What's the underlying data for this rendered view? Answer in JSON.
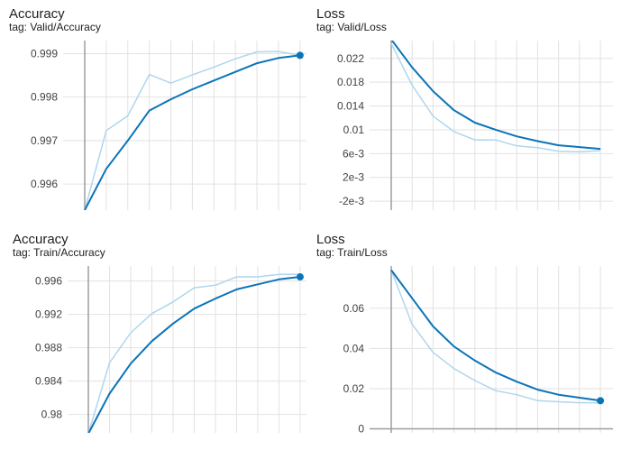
{
  "colors": {
    "smoothed": "#0b74b8",
    "raw": "#aed6ee",
    "grid": "#e2e2e2",
    "axis": "#9e9e9e",
    "text": "#212121"
  },
  "chart_data": [
    {
      "type": "line",
      "title": "Accuracy",
      "subtitle": "tag: Valid/Accuracy",
      "ylim": [
        0.9954,
        0.9993
      ],
      "yticks": [
        0.996,
        0.997,
        0.998,
        0.999
      ],
      "ytick_labels": [
        "0.996",
        "0.997",
        "0.998",
        "0.999"
      ],
      "xlim": [
        0,
        10.3
      ],
      "grid": true,
      "show_end_marker": true,
      "series": [
        {
          "x": [
            0,
            1,
            2,
            3,
            4,
            5,
            6,
            7,
            8,
            9,
            10
          ],
          "values": [
            0.9954,
            0.99723,
            0.99757,
            0.99852,
            0.99832,
            0.99851,
            0.99869,
            0.99888,
            0.99904,
            0.99905,
            0.99896
          ]
        },
        {
          "x": [
            0,
            1,
            2,
            3,
            4,
            5,
            6,
            7,
            8,
            9,
            10
          ],
          "values": [
            0.9954,
            0.99635,
            0.997,
            0.99769,
            0.99795,
            0.99818,
            0.99838,
            0.99858,
            0.99878,
            0.9989,
            0.99896
          ]
        }
      ]
    },
    {
      "type": "line",
      "title": "Loss",
      "subtitle": "tag: Valid/Loss",
      "ylim": [
        -0.0035,
        0.025
      ],
      "yticks": [
        -0.002,
        0.002,
        0.006,
        0.01,
        0.014,
        0.018,
        0.022
      ],
      "ytick_labels": [
        "-2e-3",
        "2e-3",
        "6e-3",
        "0.01",
        "0.014",
        "0.018",
        "0.022"
      ],
      "xlim": [
        0,
        10.6
      ],
      "grid": true,
      "show_end_marker": false,
      "series": [
        {
          "x": [
            0,
            1,
            2,
            3,
            4,
            5,
            6,
            7,
            8,
            9,
            10
          ],
          "values": [
            0.0245,
            0.0175,
            0.0123,
            0.0097,
            0.0083,
            0.0083,
            0.0073,
            0.007,
            0.0064,
            0.0063,
            0.0065
          ]
        },
        {
          "x": [
            0,
            1,
            2,
            3,
            4,
            5,
            6,
            7,
            8,
            9,
            10
          ],
          "values": [
            0.0252,
            0.0205,
            0.0165,
            0.0133,
            0.0112,
            0.01,
            0.0089,
            0.0081,
            0.0074,
            0.0071,
            0.0068
          ]
        }
      ]
    },
    {
      "type": "line",
      "title": "Accuracy",
      "subtitle": "tag: Train/Accuracy",
      "ylim": [
        0.9778,
        0.9978
      ],
      "yticks": [
        0.98,
        0.984,
        0.988,
        0.992,
        0.996
      ],
      "ytick_labels": [
        "0.98",
        "0.984",
        "0.988",
        "0.992",
        "0.996"
      ],
      "xlim": [
        0,
        10.3
      ],
      "grid": true,
      "show_end_marker": true,
      "series": [
        {
          "x": [
            0,
            1,
            2,
            3,
            4,
            5,
            6,
            7,
            8,
            9,
            10
          ],
          "values": [
            0.9777,
            0.9862,
            0.9898,
            0.9921,
            0.9935,
            0.9952,
            0.9955,
            0.9965,
            0.9965,
            0.9968,
            0.9968
          ]
        },
        {
          "x": [
            0,
            1,
            2,
            3,
            4,
            5,
            6,
            7,
            8,
            9,
            10
          ],
          "values": [
            0.9777,
            0.9825,
            0.9861,
            0.9888,
            0.9909,
            0.9927,
            0.9939,
            0.995,
            0.9956,
            0.9962,
            0.9965
          ]
        }
      ]
    },
    {
      "type": "line",
      "title": "Loss",
      "subtitle": "tag: Train/Loss",
      "ylim": [
        -0.002,
        0.081
      ],
      "yticks": [
        0,
        0.02,
        0.04,
        0.06
      ],
      "ytick_labels": [
        "0",
        "0.02",
        "0.04",
        "0.06"
      ],
      "xlim": [
        0,
        10.6
      ],
      "grid": true,
      "show_end_marker": true,
      "series": [
        {
          "x": [
            0,
            1,
            2,
            3,
            4,
            5,
            6,
            7,
            8,
            9,
            10
          ],
          "values": [
            0.079,
            0.052,
            0.038,
            0.03,
            0.024,
            0.019,
            0.017,
            0.014,
            0.0135,
            0.013,
            0.013
          ]
        },
        {
          "x": [
            0,
            1,
            2,
            3,
            4,
            5,
            6,
            7,
            8,
            9,
            10
          ],
          "values": [
            0.079,
            0.065,
            0.051,
            0.041,
            0.034,
            0.028,
            0.0235,
            0.0195,
            0.017,
            0.0155,
            0.014
          ]
        }
      ]
    }
  ]
}
